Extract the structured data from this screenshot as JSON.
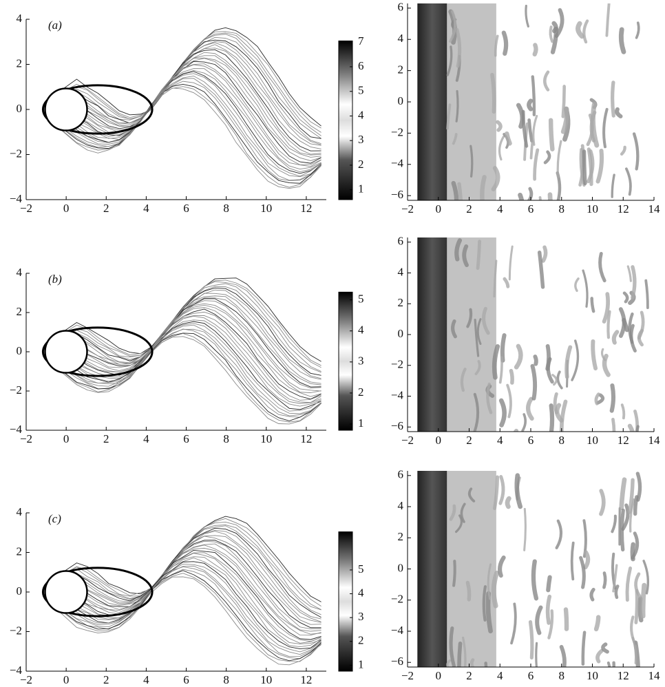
{
  "chart_data": [
    {
      "type": "contour",
      "panel_label": "(a)",
      "xlim": [
        -2,
        13
      ],
      "ylim": [
        -4,
        4
      ],
      "xticks": [
        {
          "value": -2,
          "label": "−2"
        },
        0,
        2,
        4,
        6,
        8,
        10,
        12
      ],
      "yticks": [
        {
          "value": -4,
          "label": "−4"
        },
        {
          "value": -2,
          "label": "−2"
        },
        0,
        2,
        4
      ],
      "colorbar": {
        "clim": [
          0.6,
          7.05
        ],
        "ticks": [
          1,
          2,
          3,
          4,
          5,
          6,
          7
        ]
      }
    },
    {
      "type": "isosurface",
      "xlim": [
        -2,
        14
      ],
      "ylim": [
        -6.3,
        6.3
      ],
      "xticks": [
        {
          "value": -2,
          "label": "−2"
        },
        0,
        2,
        4,
        6,
        8,
        10,
        12,
        14
      ],
      "yticks": [
        {
          "value": -6,
          "label": "−6"
        },
        {
          "value": -4,
          "label": "−4"
        },
        {
          "value": -2,
          "label": "−2"
        },
        0,
        2,
        4,
        6
      ]
    },
    {
      "type": "contour",
      "panel_label": "(b)",
      "xlim": [
        -2,
        13
      ],
      "ylim": [
        -4,
        4
      ],
      "xticks": [
        {
          "value": -2,
          "label": "−2"
        },
        0,
        2,
        4,
        6,
        8,
        10,
        12
      ],
      "yticks": [
        {
          "value": -4,
          "label": "−4"
        },
        {
          "value": -2,
          "label": "−2"
        },
        0,
        2,
        4
      ],
      "colorbar": {
        "clim": [
          0.8,
          5.25
        ],
        "ticks": [
          1,
          2,
          3,
          4,
          5
        ]
      }
    },
    {
      "type": "isosurface",
      "xlim": [
        -2,
        14
      ],
      "ylim": [
        -6.3,
        6.3
      ],
      "xticks": [
        {
          "value": -2,
          "label": "−2"
        },
        0,
        2,
        4,
        6,
        8,
        10,
        12,
        14
      ],
      "yticks": [
        {
          "value": -6,
          "label": "−6"
        },
        {
          "value": -4,
          "label": "−4"
        },
        {
          "value": -2,
          "label": "−2"
        },
        0,
        2,
        4,
        6
      ]
    },
    {
      "type": "contour",
      "panel_label": "(c)",
      "xlim": [
        -2,
        13
      ],
      "ylim": [
        -4,
        4
      ],
      "xticks": [
        {
          "value": -2,
          "label": "−2"
        },
        0,
        2,
        4,
        6,
        8,
        10,
        12
      ],
      "yticks": [
        {
          "value": -4,
          "label": "−4"
        },
        {
          "value": -2,
          "label": "−2"
        },
        0,
        2,
        4
      ],
      "colorbar": {
        "clim": [
          0.75,
          6.6
        ],
        "ticks": [
          1,
          2,
          3,
          4,
          5
        ]
      }
    },
    {
      "type": "isosurface",
      "xlim": [
        -2,
        14
      ],
      "ylim": [
        -6.3,
        6.3
      ],
      "xticks": [
        {
          "value": -2,
          "label": "−2"
        },
        0,
        2,
        4,
        6,
        8,
        10,
        12,
        14
      ],
      "yticks": [
        {
          "value": -6,
          "label": "−6"
        },
        {
          "value": -4,
          "label": "−4"
        },
        {
          "value": -2,
          "label": "−2"
        },
        0,
        2,
        4,
        6
      ]
    }
  ]
}
